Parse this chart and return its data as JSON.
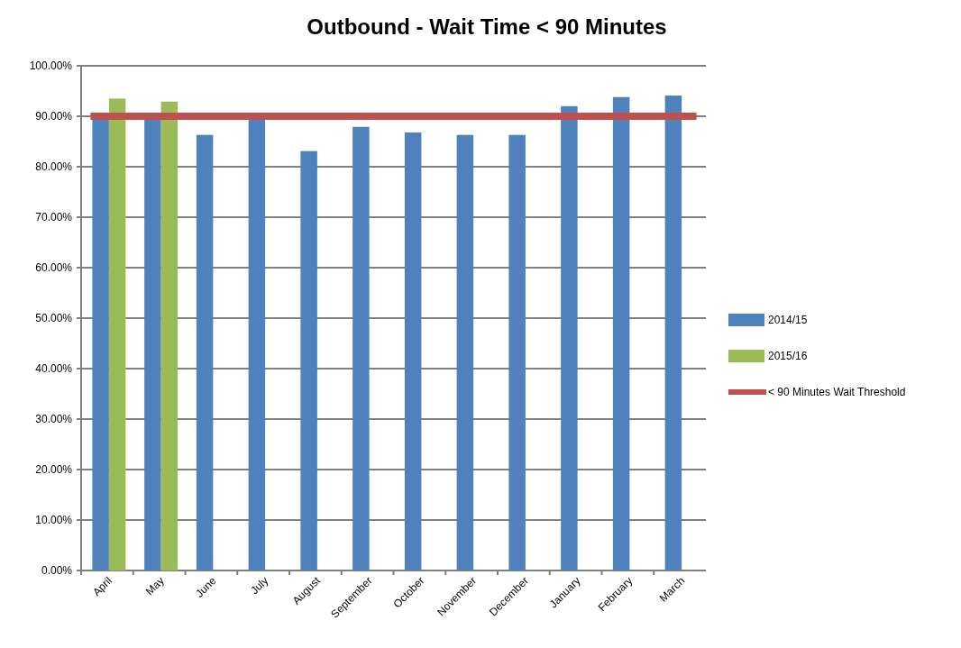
{
  "chart_data": {
    "type": "bar",
    "title": "Outbound - Wait Time < 90 Minutes",
    "categories": [
      "April",
      "May",
      "June",
      "July",
      "August",
      "September",
      "October",
      "November",
      "December",
      "January",
      "February",
      "March"
    ],
    "series": [
      {
        "name": "2014/15",
        "color": "#4f81bd",
        "values": [
          89.6,
          89.7,
          86.3,
          89.7,
          83.1,
          87.9,
          86.8,
          86.3,
          86.3,
          92.0,
          93.8,
          94.1
        ]
      },
      {
        "name": "2015/16",
        "color": "#9bbb59",
        "values": [
          93.5,
          92.9,
          null,
          null,
          null,
          null,
          null,
          null,
          null,
          null,
          null,
          null
        ]
      }
    ],
    "ref_lines": [
      {
        "axis": "y",
        "value": 90,
        "label": "< 90 Minutes Wait Threshold",
        "color": "#c0504d"
      }
    ],
    "ylim": [
      0,
      100
    ],
    "yticks": [
      {
        "value": 0,
        "label": "0.00%"
      },
      {
        "value": 10,
        "label": "10.00%"
      },
      {
        "value": 20,
        "label": "20.00%"
      },
      {
        "value": 30,
        "label": "30.00%"
      },
      {
        "value": 40,
        "label": "40.00%"
      },
      {
        "value": 50,
        "label": "50.00%"
      },
      {
        "value": 60,
        "label": "60.00%"
      },
      {
        "value": 70,
        "label": "70.00%"
      },
      {
        "value": 80,
        "label": "80.00%"
      },
      {
        "value": 90,
        "label": "90.00%"
      },
      {
        "value": 100,
        "label": "100.00%"
      }
    ],
    "grid": "y",
    "legend": "right"
  }
}
